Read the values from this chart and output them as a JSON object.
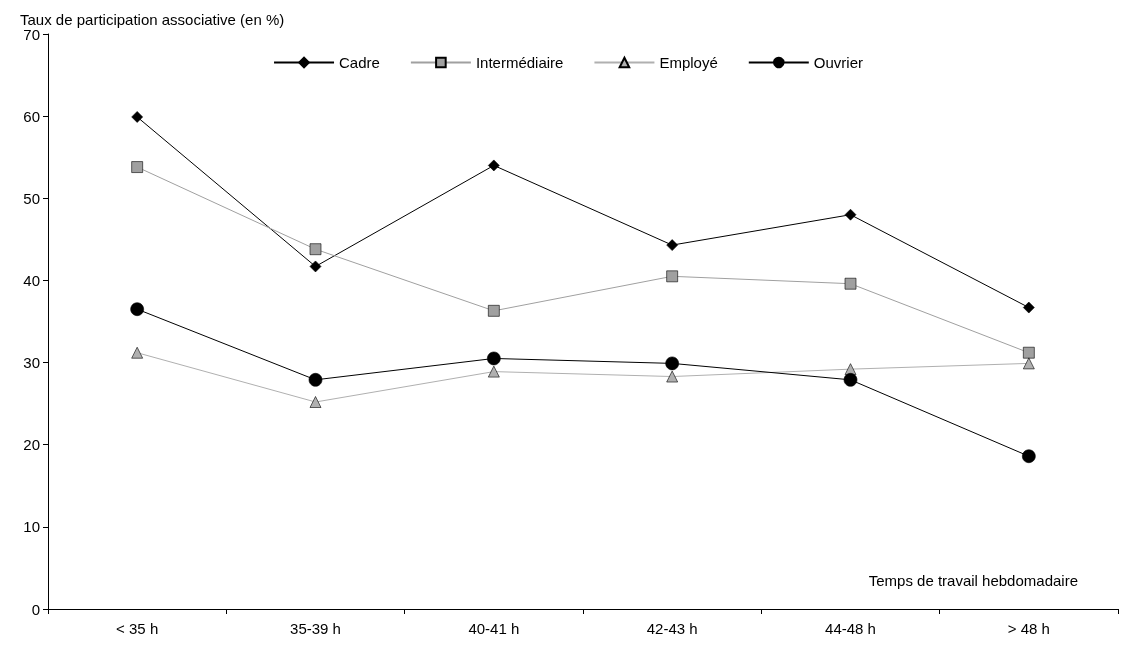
{
  "chart_data": {
    "type": "line",
    "ylabel": "Taux de participation associative (en %)",
    "xlabel": "Temps de travail hebdomadaire",
    "categories": [
      "< 35 h",
      "35-39 h",
      "40-41 h",
      "42-43 h",
      "44-48 h",
      "> 48 h"
    ],
    "series": [
      {
        "name": "Cadre",
        "color": "#000000",
        "marker": "diamond",
        "values": [
          59.9,
          41.7,
          54.0,
          44.3,
          48.0,
          36.7
        ]
      },
      {
        "name": "Intermédiaire",
        "color": "#a0a0a0",
        "marker": "square",
        "values": [
          53.8,
          43.8,
          36.3,
          40.5,
          39.6,
          31.2
        ]
      },
      {
        "name": "Employé",
        "color": "#b0b0b0",
        "marker": "triangle",
        "values": [
          31.2,
          25.2,
          28.9,
          28.3,
          29.2,
          29.9
        ]
      },
      {
        "name": "Ouvrier",
        "color": "#000000",
        "marker": "circle",
        "values": [
          36.5,
          27.9,
          30.5,
          29.9,
          27.9,
          18.6
        ]
      }
    ],
    "ylim": [
      0,
      70
    ],
    "yticks": [
      0,
      10,
      20,
      30,
      40,
      50,
      60,
      70
    ],
    "grid": false,
    "legend": "top"
  }
}
